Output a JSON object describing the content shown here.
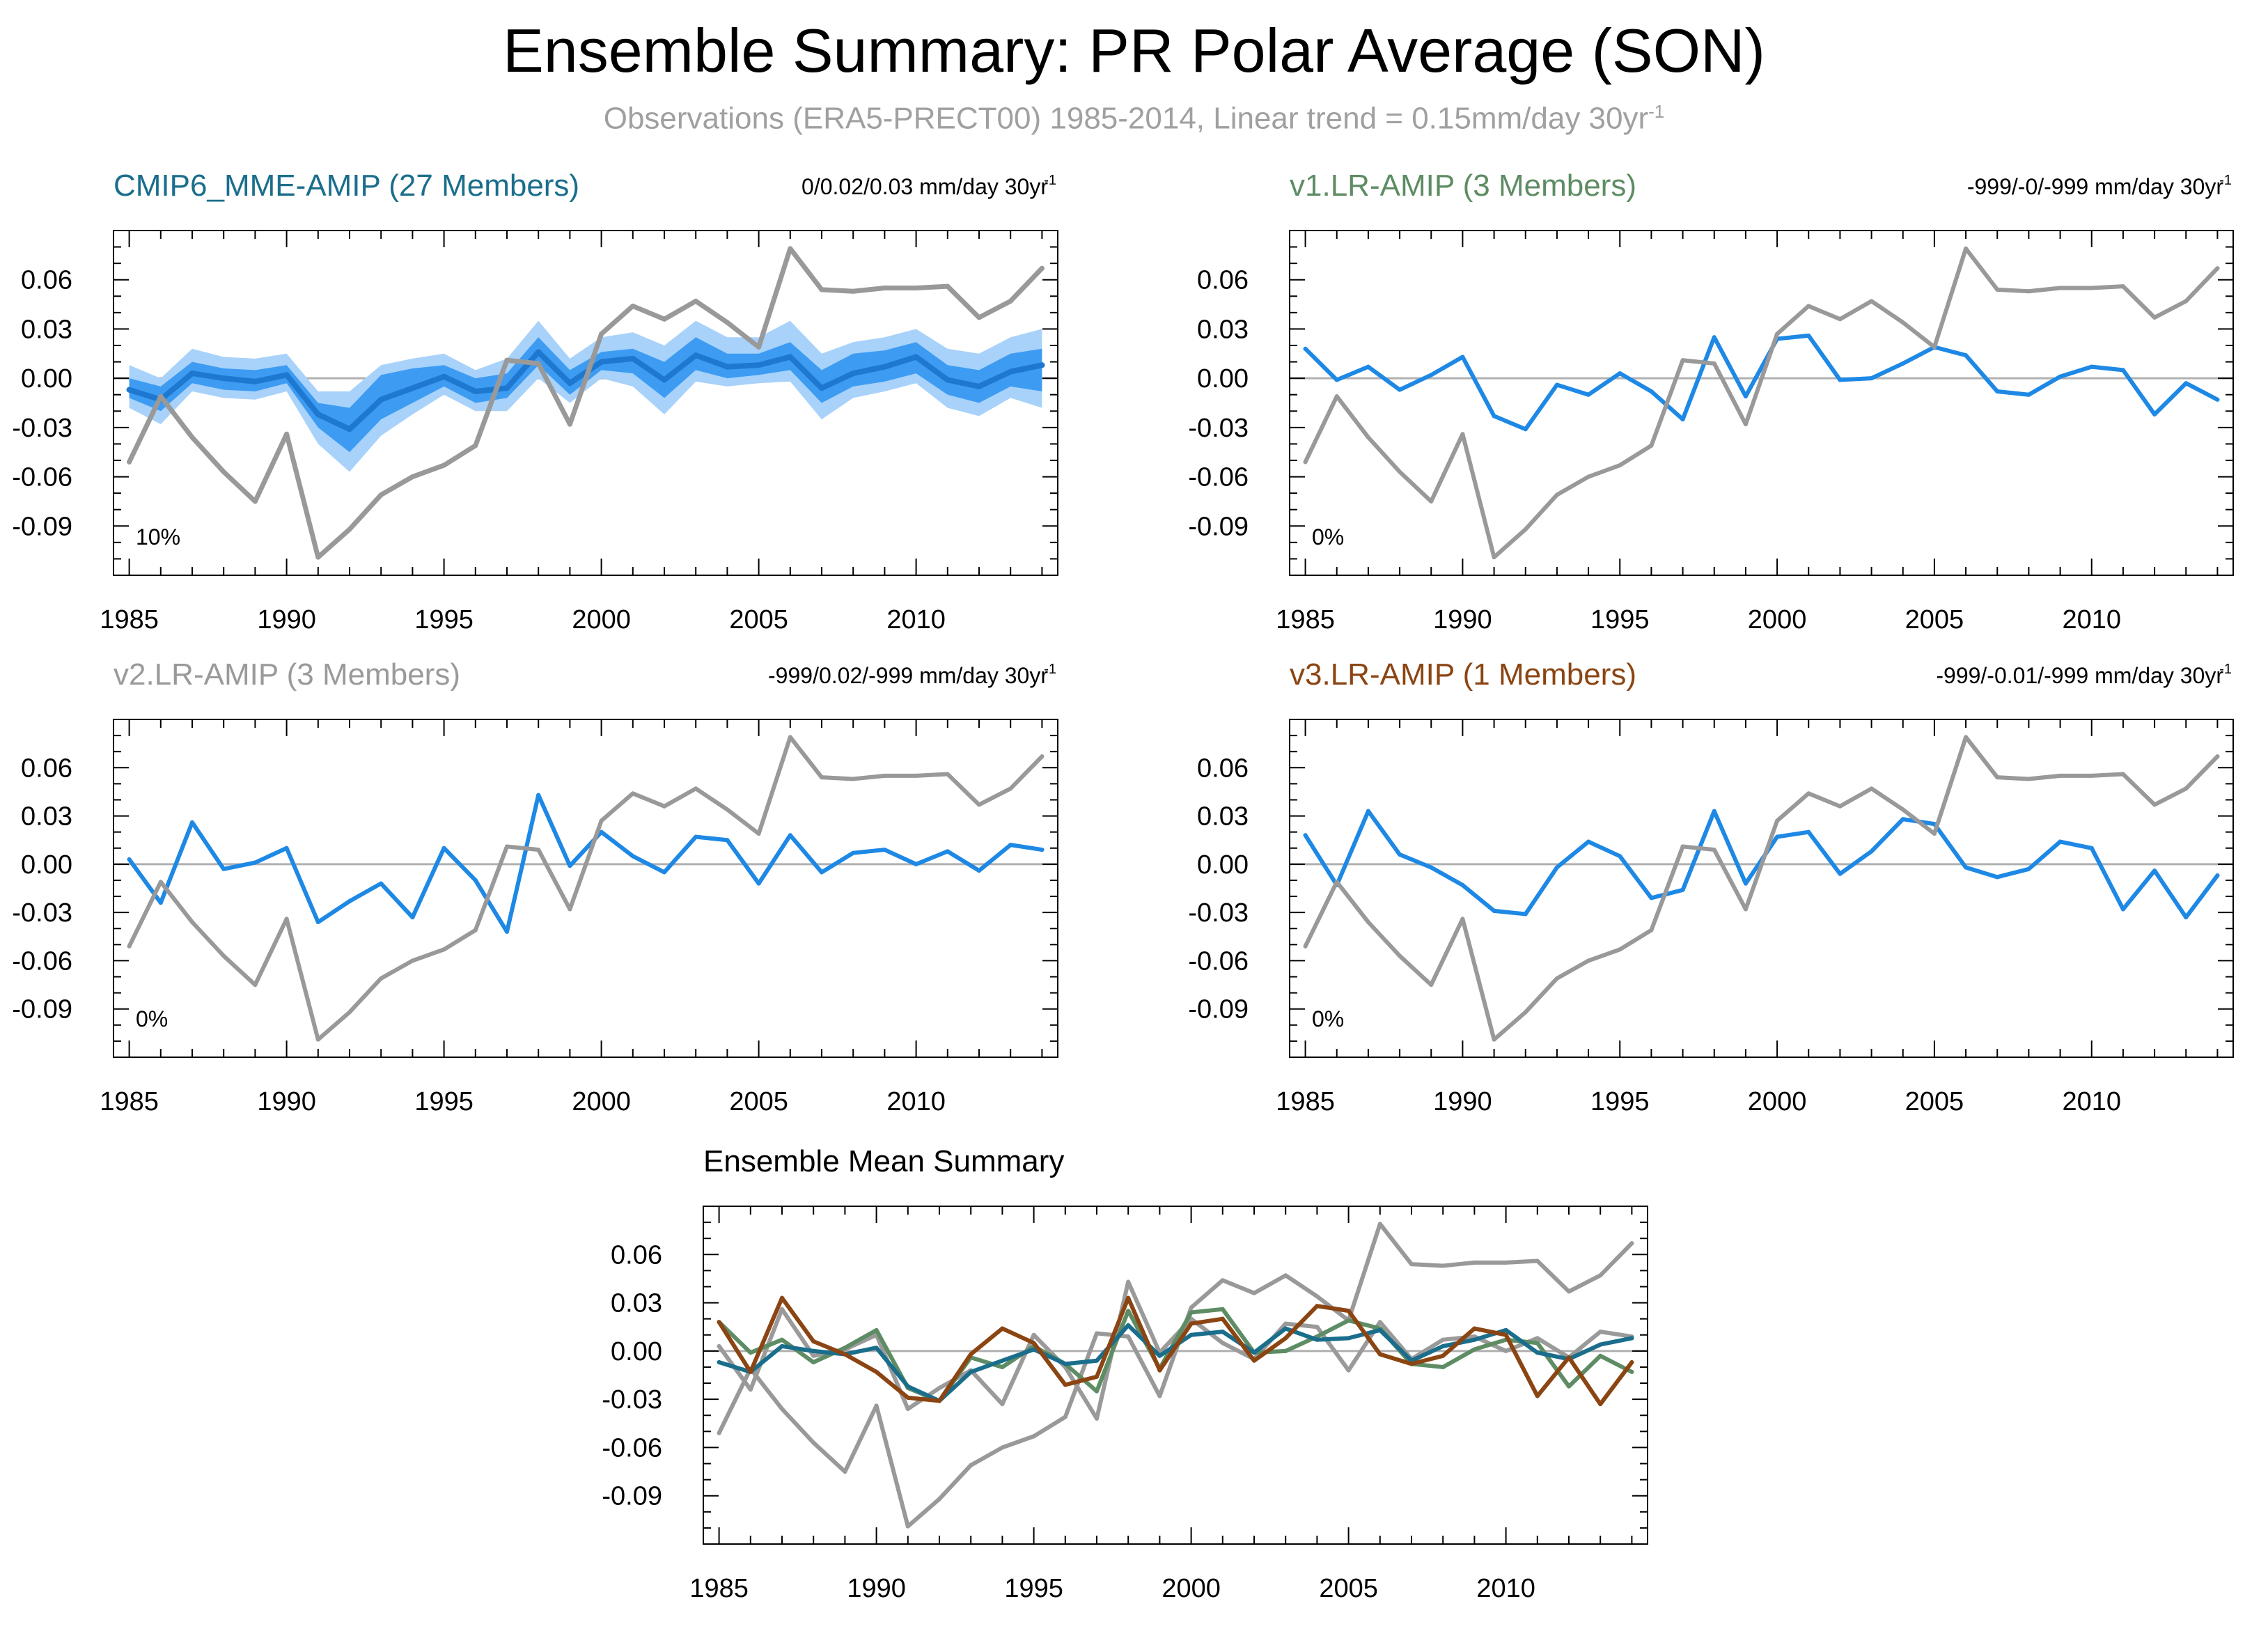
{
  "figure": {
    "title": "Ensemble Summary: PR Polar Average (SON)",
    "subtitle": "Observations (ERA5-PRECT00) 1985-2014, Linear trend = 0.15mm/day 30yr",
    "subtitle_sup": "-1"
  },
  "chart_data": [
    {
      "type": "line",
      "title": "CMIP6_MME-AMIP (27 Members)",
      "title_color": "#1a6e8c",
      "trend_label": "0/0.02/0.03 mm/day 30yr",
      "trend_sup": "-1",
      "corner_label": "10%",
      "xlim": [
        1984.5,
        2014.5
      ],
      "ylim": [
        -0.12,
        0.09
      ],
      "xticks": [
        1985,
        1990,
        1995,
        2000,
        2005,
        2010
      ],
      "yticks": [
        0.06,
        0.03,
        0.0,
        -0.03,
        -0.06,
        -0.09
      ],
      "ytick_labels": [
        "0.06",
        "0.03",
        "0.00",
        "-0.03",
        "-0.06",
        "-0.09"
      ],
      "x": [
        1985,
        1986,
        1987,
        1988,
        1989,
        1990,
        1991,
        1992,
        1993,
        1994,
        1995,
        1996,
        1997,
        1998,
        1999,
        2000,
        2001,
        2002,
        2003,
        2004,
        2005,
        2006,
        2007,
        2008,
        2009,
        2010,
        2011,
        2012,
        2013,
        2014
      ],
      "bands": [
        {
          "name": "",
          "color": "#a8d2fa",
          "lower": [
            -0.018,
            -0.028,
            -0.008,
            -0.012,
            -0.013,
            -0.008,
            -0.04,
            -0.057,
            -0.035,
            -0.022,
            -0.01,
            -0.02,
            -0.02,
            0.0,
            -0.015,
            0.0,
            -0.005,
            -0.022,
            -0.002,
            -0.005,
            -0.003,
            -0.002,
            -0.025,
            -0.012,
            -0.008,
            -0.003,
            -0.018,
            -0.023,
            -0.012,
            -0.018
          ],
          "upper": [
            0.008,
            0.0,
            0.018,
            0.013,
            0.012,
            0.015,
            -0.008,
            -0.008,
            0.008,
            0.012,
            0.015,
            0.005,
            0.012,
            0.035,
            0.012,
            0.025,
            0.028,
            0.02,
            0.035,
            0.025,
            0.025,
            0.035,
            0.015,
            0.022,
            0.025,
            0.03,
            0.018,
            0.015,
            0.025,
            0.03
          ]
        },
        {
          "name": "",
          "color": "#3d9cf2",
          "lower": [
            -0.012,
            -0.02,
            -0.003,
            -0.007,
            -0.008,
            -0.003,
            -0.03,
            -0.045,
            -0.025,
            -0.015,
            -0.005,
            -0.015,
            -0.012,
            0.008,
            -0.01,
            0.005,
            0.003,
            -0.012,
            0.005,
            0.0,
            0.002,
            0.005,
            -0.015,
            -0.005,
            -0.002,
            0.003,
            -0.01,
            -0.015,
            -0.005,
            -0.008
          ],
          "upper": [
            0.0,
            -0.005,
            0.01,
            0.006,
            0.005,
            0.008,
            -0.015,
            -0.018,
            0.002,
            0.006,
            0.008,
            0.0,
            0.003,
            0.025,
            0.005,
            0.016,
            0.018,
            0.01,
            0.025,
            0.015,
            0.015,
            0.022,
            0.005,
            0.015,
            0.017,
            0.022,
            0.008,
            0.005,
            0.015,
            0.018
          ]
        }
      ],
      "series": [
        {
          "name": "",
          "color": "#1e78d0",
          "width": 8,
          "values": [
            -0.007,
            -0.013,
            0.003,
            0.0,
            -0.002,
            0.002,
            -0.022,
            -0.031,
            -0.013,
            -0.006,
            0.001,
            -0.008,
            -0.006,
            0.016,
            -0.003,
            0.01,
            0.012,
            -0.001,
            0.014,
            0.007,
            0.008,
            0.013,
            -0.006,
            0.003,
            0.007,
            0.013,
            -0.001,
            -0.005,
            0.004,
            0.008
          ]
        },
        {
          "name": "",
          "color": "#999999",
          "width": 7,
          "values": [
            -0.051,
            -0.011,
            -0.036,
            -0.057,
            -0.075,
            -0.034,
            -0.109,
            -0.092,
            -0.071,
            -0.06,
            -0.053,
            -0.041,
            0.011,
            0.009,
            -0.028,
            0.027,
            0.044,
            0.036,
            0.047,
            0.034,
            0.019,
            0.079,
            0.054,
            0.053,
            0.055,
            0.055,
            0.056,
            0.037,
            0.047,
            0.067
          ]
        }
      ]
    },
    {
      "type": "line",
      "title": "v1.LR-AMIP (3 Members)",
      "title_color": "#5e8c64",
      "trend_label": "-999/-0/-999 mm/day 30yr",
      "trend_sup": "-1",
      "corner_label": "0%",
      "xlim": [
        1984.5,
        2014.5
      ],
      "ylim": [
        -0.12,
        0.09
      ],
      "xticks": [
        1985,
        1990,
        1995,
        2000,
        2005,
        2010
      ],
      "yticks": [
        0.06,
        0.03,
        0.0,
        -0.03,
        -0.06,
        -0.09
      ],
      "ytick_labels": [
        "0.06",
        "0.03",
        "0.00",
        "-0.03",
        "-0.06",
        "-0.09"
      ],
      "x": [
        1985,
        1986,
        1987,
        1988,
        1989,
        1990,
        1991,
        1992,
        1993,
        1994,
        1995,
        1996,
        1997,
        1998,
        1999,
        2000,
        2001,
        2002,
        2003,
        2004,
        2005,
        2006,
        2007,
        2008,
        2009,
        2010,
        2011,
        2012,
        2013,
        2014
      ],
      "bands": [],
      "series": [
        {
          "name": "",
          "color": "#1e88e5",
          "width": 6,
          "values": [
            0.018,
            -0.001,
            0.007,
            -0.007,
            0.002,
            0.013,
            -0.023,
            -0.031,
            -0.004,
            -0.01,
            0.003,
            -0.008,
            -0.025,
            0.025,
            -0.011,
            0.024,
            0.026,
            -0.001,
            0.0,
            0.009,
            0.019,
            0.014,
            -0.008,
            -0.01,
            0.001,
            0.007,
            0.005,
            -0.022,
            -0.003,
            -0.013
          ]
        },
        {
          "name": "",
          "color": "#999999",
          "width": 6,
          "values": [
            -0.051,
            -0.011,
            -0.036,
            -0.057,
            -0.075,
            -0.034,
            -0.109,
            -0.092,
            -0.071,
            -0.06,
            -0.053,
            -0.041,
            0.011,
            0.009,
            -0.028,
            0.027,
            0.044,
            0.036,
            0.047,
            0.034,
            0.019,
            0.079,
            0.054,
            0.053,
            0.055,
            0.055,
            0.056,
            0.037,
            0.047,
            0.067
          ]
        }
      ]
    },
    {
      "type": "line",
      "title": "v2.LR-AMIP (3 Members)",
      "title_color": "#9a9a9a",
      "trend_label": "-999/0.02/-999 mm/day 30yr",
      "trend_sup": "-1",
      "corner_label": "0%",
      "xlim": [
        1984.5,
        2014.5
      ],
      "ylim": [
        -0.12,
        0.09
      ],
      "xticks": [
        1985,
        1990,
        1995,
        2000,
        2005,
        2010
      ],
      "yticks": [
        0.06,
        0.03,
        0.0,
        -0.03,
        -0.06,
        -0.09
      ],
      "ytick_labels": [
        "0.06",
        "0.03",
        "0.00",
        "-0.03",
        "-0.06",
        "-0.09"
      ],
      "x": [
        1985,
        1986,
        1987,
        1988,
        1989,
        1990,
        1991,
        1992,
        1993,
        1994,
        1995,
        1996,
        1997,
        1998,
        1999,
        2000,
        2001,
        2002,
        2003,
        2004,
        2005,
        2006,
        2007,
        2008,
        2009,
        2010,
        2011,
        2012,
        2013,
        2014
      ],
      "bands": [],
      "series": [
        {
          "name": "",
          "color": "#1e88e5",
          "width": 6,
          "values": [
            0.003,
            -0.024,
            0.026,
            -0.003,
            0.001,
            0.01,
            -0.036,
            -0.023,
            -0.012,
            -0.033,
            0.01,
            -0.01,
            -0.042,
            0.043,
            -0.001,
            0.02,
            0.005,
            -0.005,
            0.017,
            0.015,
            -0.012,
            0.018,
            -0.005,
            0.007,
            0.009,
            0.0,
            0.008,
            -0.004,
            0.012,
            0.009
          ]
        },
        {
          "name": "",
          "color": "#999999",
          "width": 6,
          "values": [
            -0.051,
            -0.011,
            -0.036,
            -0.057,
            -0.075,
            -0.034,
            -0.109,
            -0.092,
            -0.071,
            -0.06,
            -0.053,
            -0.041,
            0.011,
            0.009,
            -0.028,
            0.027,
            0.044,
            0.036,
            0.047,
            0.034,
            0.019,
            0.079,
            0.054,
            0.053,
            0.055,
            0.055,
            0.056,
            0.037,
            0.047,
            0.067
          ]
        }
      ]
    },
    {
      "type": "line",
      "title": "v3.LR-AMIP (1 Members)",
      "title_color": "#8b4513",
      "trend_label": "-999/-0.01/-999 mm/day 30yr",
      "trend_sup": "-1",
      "corner_label": "0%",
      "xlim": [
        1984.5,
        2014.5
      ],
      "ylim": [
        -0.12,
        0.09
      ],
      "xticks": [
        1985,
        1990,
        1995,
        2000,
        2005,
        2010
      ],
      "yticks": [
        0.06,
        0.03,
        0.0,
        -0.03,
        -0.06,
        -0.09
      ],
      "ytick_labels": [
        "0.06",
        "0.03",
        "0.00",
        "-0.03",
        "-0.06",
        "-0.09"
      ],
      "x": [
        1985,
        1986,
        1987,
        1988,
        1989,
        1990,
        1991,
        1992,
        1993,
        1994,
        1995,
        1996,
        1997,
        1998,
        1999,
        2000,
        2001,
        2002,
        2003,
        2004,
        2005,
        2006,
        2007,
        2008,
        2009,
        2010,
        2011,
        2012,
        2013,
        2014
      ],
      "bands": [],
      "series": [
        {
          "name": "",
          "color": "#1e88e5",
          "width": 6,
          "values": [
            0.018,
            -0.013,
            0.033,
            0.006,
            -0.002,
            -0.013,
            -0.029,
            -0.031,
            -0.002,
            0.014,
            0.005,
            -0.021,
            -0.016,
            0.033,
            -0.012,
            0.017,
            0.02,
            -0.006,
            0.008,
            0.028,
            0.025,
            -0.002,
            -0.008,
            -0.003,
            0.014,
            0.01,
            -0.028,
            -0.004,
            -0.033,
            -0.007
          ]
        },
        {
          "name": "",
          "color": "#999999",
          "width": 6,
          "values": [
            -0.051,
            -0.011,
            -0.036,
            -0.057,
            -0.075,
            -0.034,
            -0.109,
            -0.092,
            -0.071,
            -0.06,
            -0.053,
            -0.041,
            0.011,
            0.009,
            -0.028,
            0.027,
            0.044,
            0.036,
            0.047,
            0.034,
            0.019,
            0.079,
            0.054,
            0.053,
            0.055,
            0.055,
            0.056,
            0.037,
            0.047,
            0.067
          ]
        }
      ]
    },
    {
      "type": "line",
      "title": "Ensemble Mean Summary",
      "title_color": "#000000",
      "trend_label": "",
      "trend_sup": "",
      "corner_label": "",
      "xlim": [
        1984.5,
        2014.5
      ],
      "ylim": [
        -0.12,
        0.09
      ],
      "xticks": [
        1985,
        1990,
        1995,
        2000,
        2005,
        2010
      ],
      "yticks": [
        0.06,
        0.03,
        0.0,
        -0.03,
        -0.06,
        -0.09
      ],
      "ytick_labels": [
        "0.06",
        "0.03",
        "0.00",
        "-0.03",
        "-0.06",
        "-0.09"
      ],
      "x": [
        1985,
        1986,
        1987,
        1988,
        1989,
        1990,
        1991,
        1992,
        1993,
        1994,
        1995,
        1996,
        1997,
        1998,
        1999,
        2000,
        2001,
        2002,
        2003,
        2004,
        2005,
        2006,
        2007,
        2008,
        2009,
        2010,
        2011,
        2012,
        2013,
        2014
      ],
      "bands": [],
      "series": [
        {
          "name": "",
          "color": "#999999",
          "width": 6,
          "values": [
            -0.051,
            -0.011,
            -0.036,
            -0.057,
            -0.075,
            -0.034,
            -0.109,
            -0.092,
            -0.071,
            -0.06,
            -0.053,
            -0.041,
            0.011,
            0.009,
            -0.028,
            0.027,
            0.044,
            0.036,
            0.047,
            0.034,
            0.019,
            0.079,
            0.054,
            0.053,
            0.055,
            0.055,
            0.056,
            0.037,
            0.047,
            0.067
          ]
        },
        {
          "name": "",
          "color": "#9a9a9a",
          "width": 6,
          "values": [
            0.003,
            -0.024,
            0.026,
            -0.003,
            0.001,
            0.01,
            -0.036,
            -0.023,
            -0.012,
            -0.033,
            0.01,
            -0.01,
            -0.042,
            0.043,
            -0.001,
            0.02,
            0.005,
            -0.005,
            0.017,
            0.015,
            -0.012,
            0.018,
            -0.005,
            0.007,
            0.009,
            0.0,
            0.008,
            -0.004,
            0.012,
            0.009
          ]
        },
        {
          "name": "",
          "color": "#5e8c64",
          "width": 6,
          "values": [
            0.018,
            -0.001,
            0.007,
            -0.007,
            0.002,
            0.013,
            -0.023,
            -0.031,
            -0.004,
            -0.01,
            0.003,
            -0.008,
            -0.025,
            0.025,
            -0.011,
            0.024,
            0.026,
            -0.001,
            0.0,
            0.009,
            0.019,
            0.014,
            -0.008,
            -0.01,
            0.001,
            0.007,
            0.005,
            -0.022,
            -0.003,
            -0.013
          ]
        },
        {
          "name": "",
          "color": "#1a6e8c",
          "width": 6,
          "values": [
            -0.007,
            -0.013,
            0.003,
            0.0,
            -0.002,
            0.002,
            -0.022,
            -0.031,
            -0.013,
            -0.006,
            0.001,
            -0.008,
            -0.006,
            0.016,
            -0.003,
            0.01,
            0.012,
            -0.001,
            0.014,
            0.007,
            0.008,
            0.013,
            -0.006,
            0.003,
            0.007,
            0.013,
            -0.001,
            -0.005,
            0.004,
            0.008
          ]
        },
        {
          "name": "",
          "color": "#8b4513",
          "width": 6,
          "values": [
            0.018,
            -0.013,
            0.033,
            0.006,
            -0.002,
            -0.013,
            -0.029,
            -0.031,
            -0.002,
            0.014,
            0.005,
            -0.021,
            -0.016,
            0.033,
            -0.012,
            0.017,
            0.02,
            -0.006,
            0.008,
            0.028,
            0.025,
            -0.002,
            -0.008,
            -0.003,
            0.014,
            0.01,
            -0.028,
            -0.004,
            -0.033,
            -0.007
          ]
        }
      ]
    }
  ]
}
